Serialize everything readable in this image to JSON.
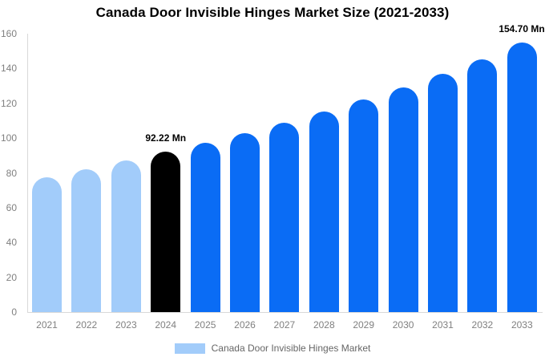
{
  "title": "Canada Door Invisible Hinges Market Size (2021-2033)",
  "legend": {
    "label": "Canada Door Invisible Hinges Market",
    "swatch_color": "#a2ccfa"
  },
  "colors": {
    "past_bar": "#a2ccfa",
    "current_bar": "#000000",
    "forecast_bar": "#0a6cf5",
    "axis_line": "#d9d9d9",
    "tick_text": "#808080",
    "legend_text": "#666666",
    "title_text": "#000000",
    "background": "#ffffff"
  },
  "chart_data": {
    "type": "bar",
    "title": "Canada Door Invisible Hinges Market Size (2021-2033)",
    "xlabel": "",
    "ylabel": "",
    "unit": "Mn",
    "categories": [
      "2021",
      "2022",
      "2023",
      "2024",
      "2025",
      "2026",
      "2027",
      "2028",
      "2029",
      "2030",
      "2031",
      "2032",
      "2033"
    ],
    "values": [
      77.5,
      82.2,
      87.0,
      92.22,
      97.2,
      102.9,
      108.7,
      115.2,
      122.0,
      129.2,
      136.9,
      145.1,
      154.7
    ],
    "bar_colors": [
      "#a2ccfa",
      "#a2ccfa",
      "#a2ccfa",
      "#000000",
      "#0a6cf5",
      "#0a6cf5",
      "#0a6cf5",
      "#0a6cf5",
      "#0a6cf5",
      "#0a6cf5",
      "#0a6cf5",
      "#0a6cf5",
      "#0a6cf5"
    ],
    "annotations": [
      {
        "category": "2024",
        "text": "92.22 Mn"
      },
      {
        "category": "2033",
        "text": "154.70 Mn"
      }
    ],
    "ylim": [
      0,
      160
    ],
    "yticks": [
      0,
      20,
      40,
      60,
      80,
      100,
      120,
      140,
      160
    ],
    "grid": false,
    "legend_position": "bottom",
    "legend_entries": [
      "Canada Door Invisible Hinges Market"
    ]
  }
}
